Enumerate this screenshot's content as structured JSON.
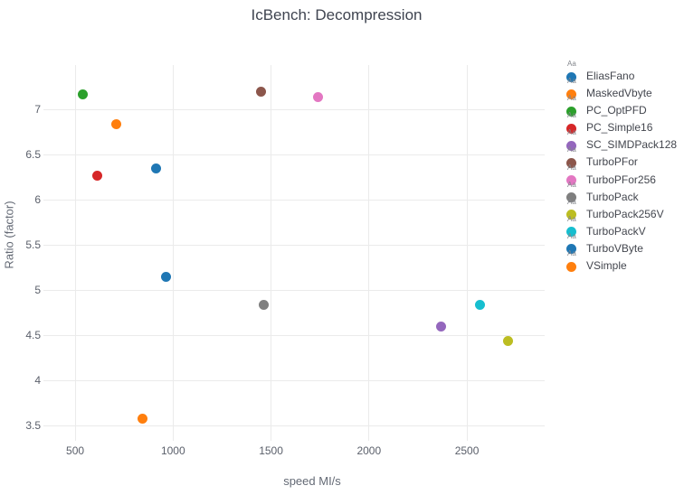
{
  "title": "IcBench: Decompression",
  "chart_data": {
    "type": "scatter",
    "title": "IcBench: Decompression",
    "xlabel": "speed MI/s",
    "ylabel": "Ratio (factor)",
    "xlim": [
      338,
      2897
    ],
    "ylim": [
      3.33,
      7.49
    ],
    "x_ticks": [
      500,
      1000,
      1500,
      2000,
      2500
    ],
    "y_ticks": [
      "3.5",
      "4",
      "4.5",
      "5",
      "5.5",
      "6",
      "6.5",
      "7"
    ],
    "grid": true,
    "legend_position": "right",
    "legend_glyph_text": "Aa",
    "gridline_color": "#ebebeb",
    "series": [
      {
        "name": "EliasFano",
        "color": "#1f77b4",
        "x": 911,
        "y": 6.35
      },
      {
        "name": "MaskedVbyte",
        "color": "#ff7f0e",
        "x": 846,
        "y": 3.58
      },
      {
        "name": "PC_OptPFD",
        "color": "#2ca02c",
        "x": 541,
        "y": 7.17
      },
      {
        "name": "PC_Simple16",
        "color": "#d62728",
        "x": 611,
        "y": 6.27
      },
      {
        "name": "SC_SIMDPack128",
        "color": "#9467bd",
        "x": 2366,
        "y": 4.6
      },
      {
        "name": "TurboPFor",
        "color": "#8c564b",
        "x": 1447,
        "y": 7.2
      },
      {
        "name": "TurboPFor256",
        "color": "#e377c2",
        "x": 1738,
        "y": 7.14
      },
      {
        "name": "TurboPack",
        "color": "#7f7f7f",
        "x": 1465,
        "y": 4.84
      },
      {
        "name": "TurboPack256V",
        "color": "#bcbd22",
        "x": 2712,
        "y": 4.44
      },
      {
        "name": "TurboPackV",
        "color": "#17becf",
        "x": 2565,
        "y": 4.84
      },
      {
        "name": "TurboVByte",
        "color": "#1f77b4",
        "x": 962,
        "y": 5.15
      },
      {
        "name": "VSimple",
        "color": "#ff7f0e",
        "x": 708,
        "y": 6.84
      }
    ]
  }
}
